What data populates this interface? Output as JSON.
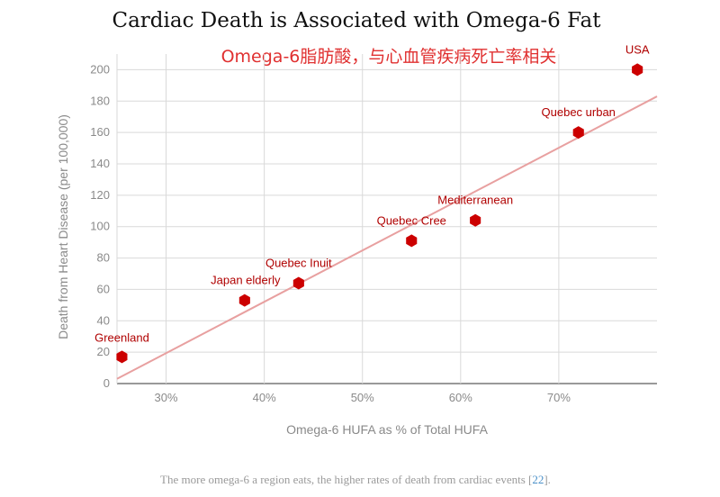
{
  "colors": {
    "point": "#cc0000",
    "trendline": "#e8a0a0",
    "grid": "#d9d9d9",
    "label": "#b00000",
    "subtitle": "#e03030"
  },
  "chart_data": {
    "type": "scatter",
    "title": "Cardiac Death is Associated with Omega-6 Fat",
    "subtitle": "Omega-6脂肪酸，与心血管疾病死亡率相关",
    "xlabel": "Omega-6 HUFA as % of Total HUFA",
    "ylabel": "Death from Heart Disease (per 100,000)",
    "xlim": [
      25,
      80
    ],
    "ylim": [
      0,
      210
    ],
    "x_ticks": [
      {
        "value": 30,
        "label": "30%"
      },
      {
        "value": 40,
        "label": "40%"
      },
      {
        "value": 50,
        "label": "50%"
      },
      {
        "value": 60,
        "label": "60%"
      },
      {
        "value": 70,
        "label": "70%"
      }
    ],
    "y_ticks": [
      {
        "value": 0,
        "label": "0"
      },
      {
        "value": 20,
        "label": "20"
      },
      {
        "value": 40,
        "label": "40"
      },
      {
        "value": 60,
        "label": "60"
      },
      {
        "value": 80,
        "label": "80"
      },
      {
        "value": 100,
        "label": "100"
      },
      {
        "value": 120,
        "label": "120"
      },
      {
        "value": 140,
        "label": "140"
      },
      {
        "value": 160,
        "label": "160"
      },
      {
        "value": 180,
        "label": "180"
      },
      {
        "value": 200,
        "label": "200"
      }
    ],
    "grid": true,
    "points": [
      {
        "label": "Greenland",
        "x": 25.5,
        "y": 17
      },
      {
        "label": "Japan elderly",
        "x": 38,
        "y": 53
      },
      {
        "label": "Quebec Inuit",
        "x": 43.5,
        "y": 64
      },
      {
        "label": "Quebec Cree",
        "x": 55,
        "y": 91
      },
      {
        "label": "Mediterranean",
        "x": 61.5,
        "y": 104
      },
      {
        "label": "Quebec urban",
        "x": 72,
        "y": 160
      },
      {
        "label": "USA",
        "x": 78,
        "y": 200
      }
    ],
    "trendline": {
      "x": [
        25,
        80
      ],
      "y": [
        3,
        183
      ]
    }
  },
  "caption": {
    "text": "The more omega-6 a region eats, the higher rates of death from cardiac events [",
    "ref": "22",
    "end": "]."
  }
}
